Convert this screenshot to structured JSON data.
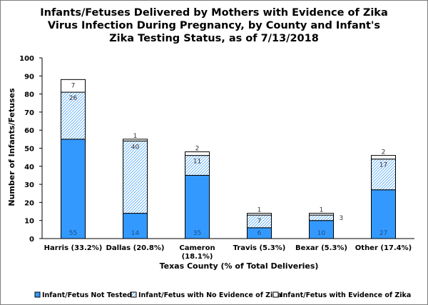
{
  "chart_data": {
    "type": "bar",
    "stacked": true,
    "title": [
      "Infants/Fetuses Delivered by Mothers with Evidence of Zika",
      "Virus Infection During Pregnancy, by County and Infant's",
      "Zika Testing Status, as of 7/13/2018"
    ],
    "xlabel": "Texas County (% of Total Deliveries)",
    "ylabel": "Number of Infants/Fetuses",
    "ylim": [
      0,
      100
    ],
    "yticks": [
      0,
      10,
      20,
      30,
      40,
      50,
      60,
      70,
      80,
      90,
      100
    ],
    "categories": [
      [
        "Harris (33.2%)"
      ],
      [
        "Dallas (20.8%)"
      ],
      [
        "Cameron",
        "(18.1%)"
      ],
      [
        "Travis (5.3%)"
      ],
      [
        "Bexar (5.3%)"
      ],
      [
        "Other (17.4%)"
      ]
    ],
    "series": [
      {
        "name": "Infant/Fetus Not Tested",
        "color": "#3399ff",
        "pattern": "solid",
        "values": [
          55,
          14,
          35,
          6,
          10,
          27
        ]
      },
      {
        "name": "Infant/Fetus with No Evidence of Zika",
        "color": "#3399ff",
        "pattern": "diagonal-hatch",
        "values": [
          26,
          40,
          11,
          7,
          3,
          17
        ]
      },
      {
        "name": "Infant/Fetus with Evidence of Zika",
        "color": "#ffffff",
        "pattern": "solid",
        "values": [
          7,
          1,
          2,
          1,
          1,
          2
        ]
      }
    ],
    "grid": false,
    "legend_position": "bottom"
  }
}
